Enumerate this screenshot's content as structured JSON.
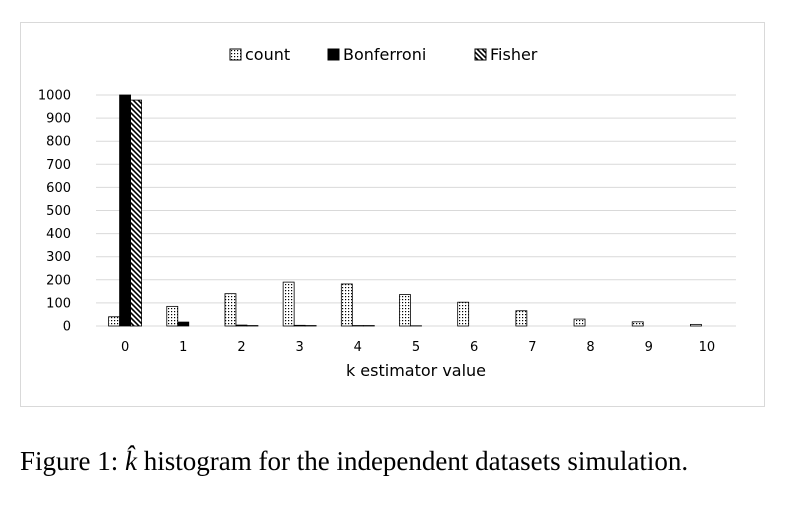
{
  "chart_data": {
    "type": "bar",
    "categories": [
      "0",
      "1",
      "2",
      "3",
      "4",
      "5",
      "6",
      "7",
      "8",
      "9",
      "10"
    ],
    "series": [
      {
        "name": "count",
        "values": [
          40,
          85,
          140,
          190,
          182,
          136,
          103,
          66,
          30,
          18,
          7
        ],
        "pattern": "dots"
      },
      {
        "name": "Bonferroni",
        "values": [
          1000,
          17,
          4,
          3,
          2,
          1,
          0,
          0,
          0,
          0,
          0
        ],
        "pattern": "solid"
      },
      {
        "name": "Fisher",
        "values": [
          978,
          0,
          2,
          2,
          2,
          0,
          0,
          0,
          0,
          0,
          0
        ],
        "pattern": "hatch"
      }
    ],
    "xlabel": "k estimator value",
    "ylabel": "",
    "ylim": [
      0,
      1000
    ],
    "yticks": [
      0,
      100,
      200,
      300,
      400,
      500,
      600,
      700,
      800,
      900,
      1000
    ],
    "grid": true,
    "legend": "top-center"
  },
  "caption": {
    "prefix": "Figure 1: ",
    "symbol": "k̂",
    "text": " histogram for the independent datasets simulation."
  },
  "colors": {
    "grid": "#d9d9d9",
    "bar": "#000000",
    "frame": "#d9d9d9"
  }
}
